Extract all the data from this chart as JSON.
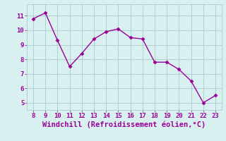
{
  "x": [
    8,
    9,
    10,
    11,
    12,
    13,
    14,
    15,
    16,
    17,
    18,
    19,
    20,
    21,
    22,
    23
  ],
  "y": [
    10.8,
    11.2,
    9.3,
    7.5,
    8.4,
    9.4,
    9.9,
    10.1,
    9.5,
    9.4,
    7.8,
    7.8,
    7.3,
    6.5,
    5.0,
    5.5
  ],
  "line_color": "#990099",
  "marker": "D",
  "marker_size": 2.5,
  "line_width": 1.0,
  "bg_color": "#d9f0f0",
  "grid_color": "#aacccc",
  "xlabel": "Windchill (Refroidissement éolien,°C)",
  "xlabel_color": "#990099",
  "xlabel_fontsize": 7.5,
  "tick_color": "#990099",
  "tick_fontsize": 6.5,
  "xlim": [
    7.5,
    23.5
  ],
  "ylim": [
    4.5,
    11.8
  ],
  "yticks": [
    5,
    6,
    7,
    8,
    9,
    10,
    11
  ],
  "xticks": [
    8,
    9,
    10,
    11,
    12,
    13,
    14,
    15,
    16,
    17,
    18,
    19,
    20,
    21,
    22,
    23
  ]
}
